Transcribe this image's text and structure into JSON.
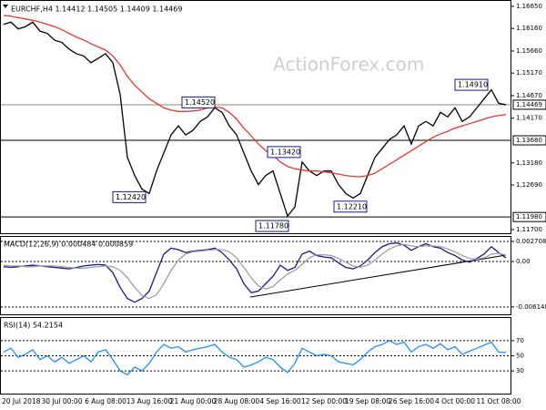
{
  "chart_data": [
    {
      "type": "line",
      "header": "EURCHF,H4 1.14412 1.14505 1.14409 1.14469",
      "watermark": "ActionForex.com",
      "ylim": [
        1.1162,
        1.1675
      ],
      "yticks": [
        {
          "value": 1.1665,
          "label": "1.16650"
        },
        {
          "value": 1.1616,
          "label": "1.16160"
        },
        {
          "value": 1.1566,
          "label": "1.15660"
        },
        {
          "value": 1.1517,
          "label": "1.15170"
        },
        {
          "value": 1.1467,
          "label": "1.14670"
        },
        {
          "value": 1.1417,
          "label": "1.14170"
        },
        {
          "value": 1.1318,
          "label": "1.13180"
        },
        {
          "value": 1.1269,
          "label": "1.12690"
        },
        {
          "value": 1.117,
          "label": "1.11700"
        }
      ],
      "grid": false,
      "current": {
        "value": 1.14469,
        "label": "1.14469"
      },
      "levels": [
        {
          "value": 1.1368,
          "label": "1.13680"
        },
        {
          "value": 1.1198,
          "label": "1.11980"
        }
      ],
      "annotations": [
        {
          "value": 1.1452,
          "label": "1.14520"
        },
        {
          "value": 1.1242,
          "label": "1.12420"
        },
        {
          "value": 1.1342,
          "label": "1.13420"
        },
        {
          "value": 1.1178,
          "label": "1.11780"
        },
        {
          "value": 1.1221,
          "label": "1.12210"
        },
        {
          "value": 1.1491,
          "label": "1.14910"
        }
      ],
      "series": [
        {
          "color": "#000000",
          "values": [
            1.1625,
            1.163,
            1.1615,
            1.162,
            1.163,
            1.161,
            1.1605,
            1.159,
            1.1585,
            1.157,
            1.156,
            1.1555,
            1.154,
            1.155,
            1.156,
            1.154,
            1.147,
            1.133,
            1.129,
            1.126,
            1.125,
            1.13,
            1.134,
            1.138,
            1.14,
            1.138,
            1.139,
            1.141,
            1.142,
            1.144,
            1.143,
            1.14,
            1.138,
            1.134,
            1.13,
            1.127,
            1.129,
            1.13,
            1.125,
            1.12,
            1.122,
            1.132,
            1.13,
            1.129,
            1.13,
            1.13,
            1.127,
            1.125,
            1.124,
            1.125,
            1.129,
            1.133,
            1.135,
            1.137,
            1.138,
            1.14,
            1.136,
            1.14,
            1.141,
            1.14,
            1.143,
            1.142,
            1.144,
            1.141,
            1.142,
            1.144,
            1.146,
            1.148,
            1.145,
            1.14469
          ]
        },
        {
          "color": "#e8372d",
          "values": [
            1.1645,
            1.1643,
            1.164,
            1.1637,
            1.1634,
            1.163,
            1.1625,
            1.162,
            1.1613,
            1.1605,
            1.1597,
            1.159,
            1.1582,
            1.1575,
            1.1568,
            1.1555,
            1.1535,
            1.151,
            1.149,
            1.1475,
            1.146,
            1.145,
            1.144,
            1.1435,
            1.1432,
            1.1432,
            1.1433,
            1.1435,
            1.144,
            1.1442,
            1.144,
            1.143,
            1.1415,
            1.1395,
            1.1378,
            1.136,
            1.1345,
            1.1335,
            1.132,
            1.131,
            1.1305,
            1.1302,
            1.13,
            1.13,
            1.1298,
            1.1296,
            1.1293,
            1.129,
            1.1288,
            1.1287,
            1.129,
            1.1295,
            1.1305,
            1.1315,
            1.1325,
            1.1335,
            1.1345,
            1.1355,
            1.1365,
            1.1375,
            1.1382,
            1.1388,
            1.1395,
            1.14,
            1.1405,
            1.141,
            1.1415,
            1.142,
            1.1423,
            1.1425
          ]
        }
      ]
    },
    {
      "type": "line",
      "header": "MACD(12,26,9) 0.000484 0.000859",
      "ylim": [
        -0.00714,
        0.00332
      ],
      "yticks": [
        0.002708,
        {
          "value": 0,
          "label": "0.00"
        },
        -0.006148
      ],
      "grid": true,
      "series": [
        {
          "color": "#1a1a8c",
          "values": [
            -0.0007,
            -0.0008,
            -0.0007,
            -0.0006,
            -0.0005,
            -0.0006,
            -0.0007,
            -0.0008,
            -0.0009,
            -0.001,
            -0.0008,
            -0.0006,
            -0.0005,
            -0.0004,
            -0.0005,
            -0.0015,
            -0.0035,
            -0.005,
            -0.0055,
            -0.005,
            -0.004,
            -0.0015,
            0.001,
            0.0018,
            0.0016,
            0.0012,
            0.0014,
            0.0015,
            0.0016,
            0.0018,
            0.0012,
            0.0002,
            -0.001,
            -0.003,
            -0.0042,
            -0.004,
            -0.003,
            -0.002,
            -0.0005,
            -0.0012,
            -0.0008,
            0.001,
            0.0014,
            0.0008,
            0.0006,
            0.0005,
            -0.0002,
            -0.0008,
            -0.001,
            -0.0006,
            0.0002,
            0.0012,
            0.002,
            0.0024,
            0.0025,
            0.0022,
            0.0015,
            0.002,
            0.0024,
            0.002,
            0.0018,
            0.0012,
            0.0008,
            0.0002,
            -0.0001,
            0.0004,
            0.001,
            0.002,
            0.0012,
            0.000484
          ]
        },
        {
          "color": "#a0a0a0",
          "values": [
            -0.0005,
            -0.0006,
            -0.0006,
            -0.0007,
            -0.0007,
            -0.0006,
            -0.0006,
            -0.0006,
            -0.0007,
            -0.0008,
            -0.0009,
            -0.0009,
            -0.0008,
            -0.0007,
            -0.0006,
            -0.0007,
            -0.0012,
            -0.0022,
            -0.0035,
            -0.0046,
            -0.005,
            -0.0045,
            -0.003,
            -0.0012,
            0.0002,
            0.001,
            0.0013,
            0.0014,
            0.0015,
            0.0016,
            0.0016,
            0.0013,
            0.0005,
            -0.0008,
            -0.0022,
            -0.0033,
            -0.0037,
            -0.0034,
            -0.0025,
            -0.0017,
            -0.0012,
            -0.0004,
            0.0005,
            0.0009,
            0.0009,
            0.0008,
            0.0004,
            -0.0001,
            -0.0006,
            -0.0008,
            -0.0005,
            0.0002,
            0.001,
            0.0017,
            0.0021,
            0.0023,
            0.0021,
            0.002,
            0.0021,
            0.0021,
            0.002,
            0.0017,
            0.0013,
            0.0008,
            0.0004,
            0.0003,
            0.0005,
            0.001,
            0.0011,
            0.000859
          ]
        }
      ]
    },
    {
      "type": "line",
      "header": "RSI(14) 54.2154",
      "ylim": [
        0,
        100
      ],
      "yticks": [
        70,
        50,
        30
      ],
      "grid": true,
      "categories": [
        null,
        null,
        "20 Jul 2018",
        null,
        null,
        null,
        null,
        null,
        "30 Jul 00:00",
        null,
        null,
        null,
        null,
        null,
        "6 Aug 08:00",
        null,
        null,
        null,
        null,
        null,
        "13 Aug 16:00",
        null,
        null,
        null,
        null,
        null,
        "21 Aug 00:00",
        null,
        null,
        null,
        null,
        null,
        "28 Aug 08:00",
        null,
        null,
        null,
        null,
        null,
        "4 Sep 16:00",
        null,
        null,
        null,
        null,
        null,
        "12 Sep 00:00",
        null,
        null,
        null,
        null,
        null,
        "19 Sep 08:00",
        null,
        null,
        null,
        null,
        null,
        "26 Sep 16:00",
        null,
        null,
        null,
        null,
        null,
        "4 Oct 00:00",
        null,
        null,
        null,
        null,
        null,
        "11 Oct 08:00",
        null
      ],
      "series": [
        {
          "color": "#1e90ff",
          "values": [
            55,
            60,
            48,
            52,
            58,
            45,
            50,
            42,
            48,
            40,
            45,
            50,
            42,
            55,
            58,
            45,
            30,
            25,
            35,
            30,
            40,
            55,
            65,
            60,
            62,
            55,
            58,
            60,
            62,
            65,
            55,
            48,
            45,
            35,
            38,
            42,
            48,
            45,
            35,
            28,
            40,
            60,
            55,
            50,
            52,
            50,
            42,
            40,
            38,
            45,
            55,
            62,
            65,
            70,
            65,
            68,
            55,
            62,
            65,
            60,
            66,
            58,
            62,
            52,
            56,
            60,
            64,
            68,
            55,
            54.2154
          ]
        }
      ]
    }
  ]
}
